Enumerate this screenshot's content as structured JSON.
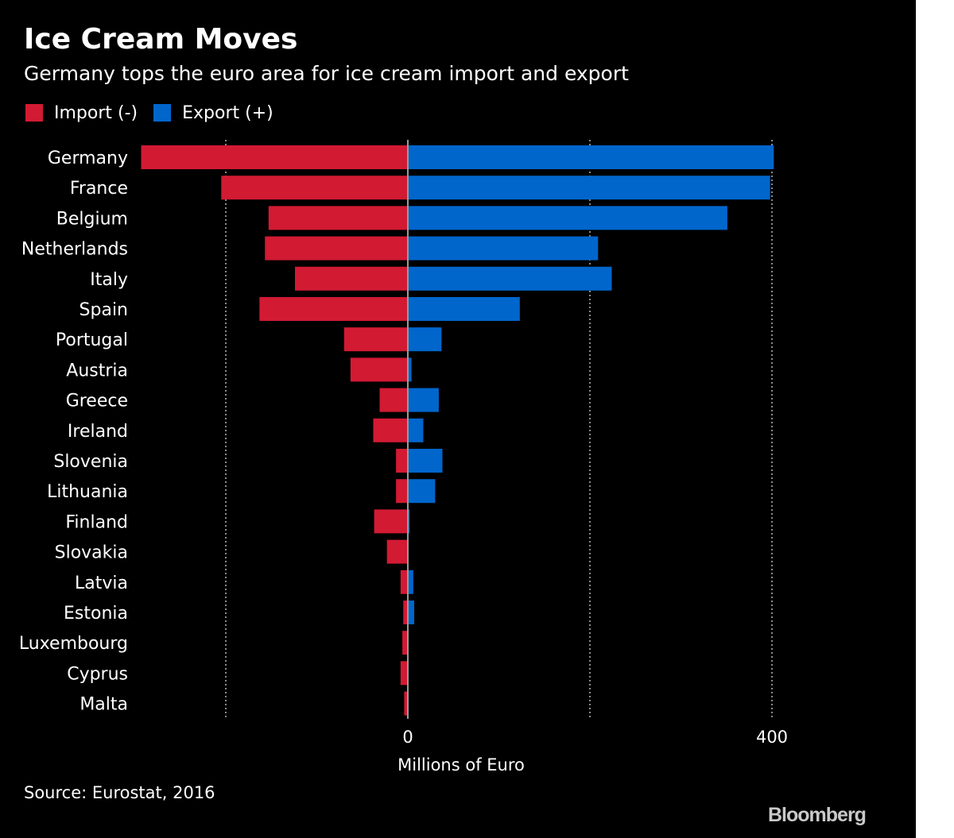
{
  "colors": {
    "background": "#000000",
    "import": "#d21a33",
    "export": "#0066cc",
    "grid": "#8a8a8a",
    "text": "#ffffff",
    "logo": "#c9c9c9"
  },
  "legend": {
    "items": [
      {
        "label": "Import (-)",
        "color_key": "import"
      },
      {
        "label": "Export (+)",
        "color_key": "export"
      }
    ]
  },
  "source": "Source: Eurostat, 2016",
  "logo": "Bloomberg",
  "chart_data": {
    "type": "bar",
    "orientation": "horizontal",
    "stacked": "diverging",
    "title": "Ice Cream Moves",
    "subtitle": "Germany tops the euro area for ice cream import and export",
    "xlabel": "Millions of Euro",
    "ylabel": "",
    "xlim": [
      -300,
      400
    ],
    "x_ticks": [
      0,
      400
    ],
    "x_tick_labels": [
      "0",
      "400"
    ],
    "x_grid": [
      -200,
      0,
      200,
      400
    ],
    "grid": true,
    "legend_position": "top-left",
    "categories": [
      "Germany",
      "France",
      "Belgium",
      "Netherlands",
      "Italy",
      "Spain",
      "Portugal",
      "Austria",
      "Greece",
      "Ireland",
      "Slovenia",
      "Lithuania",
      "Finland",
      "Slovakia",
      "Latvia",
      "Estonia",
      "Luxembourg",
      "Cyprus",
      "Malta"
    ],
    "series": [
      {
        "name": "Import (-)",
        "values": [
          -293,
          -205,
          -153,
          -157,
          -124,
          -163,
          -70,
          -63,
          -31,
          -38,
          -13,
          -13,
          -37,
          -23,
          -8,
          -5,
          -6,
          -8,
          -4
        ]
      },
      {
        "name": "Export (+)",
        "values": [
          402,
          398,
          351,
          209,
          224,
          123,
          37,
          4,
          34,
          17,
          38,
          30,
          2,
          0,
          6,
          7,
          0,
          0,
          0
        ]
      }
    ]
  }
}
